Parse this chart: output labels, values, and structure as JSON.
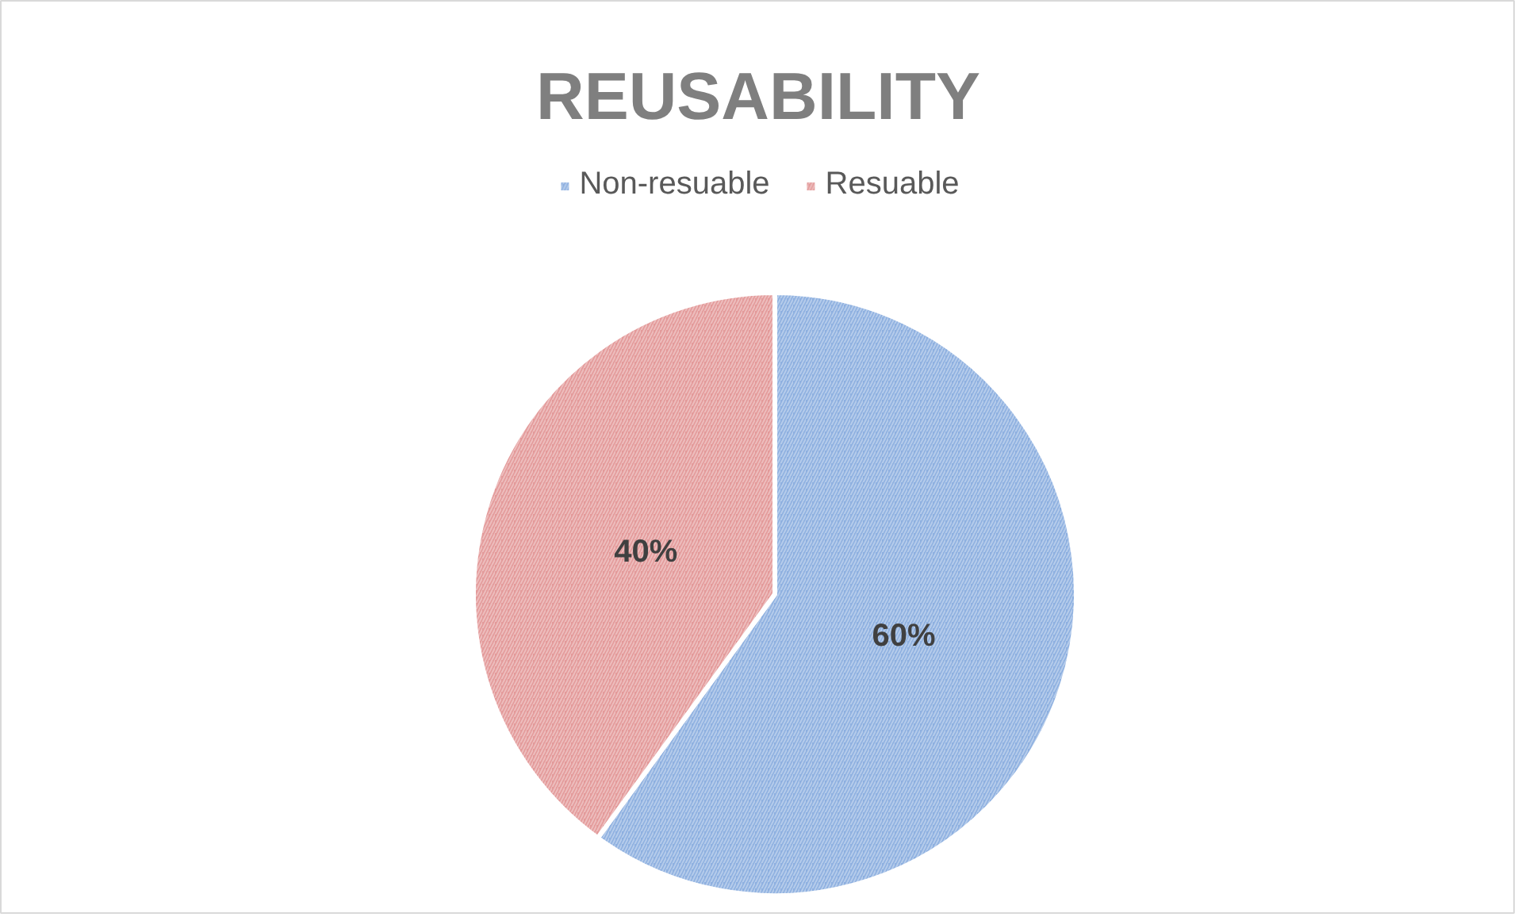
{
  "chart_data": {
    "type": "pie",
    "title": "REUSABILITY",
    "categories": [
      "Non-resuable",
      "Resuable"
    ],
    "values": [
      60,
      40
    ],
    "colors": [
      "#8eb0e0",
      "#e39a9a"
    ],
    "value_labels": [
      "60%",
      "40%"
    ],
    "legend": "top"
  }
}
